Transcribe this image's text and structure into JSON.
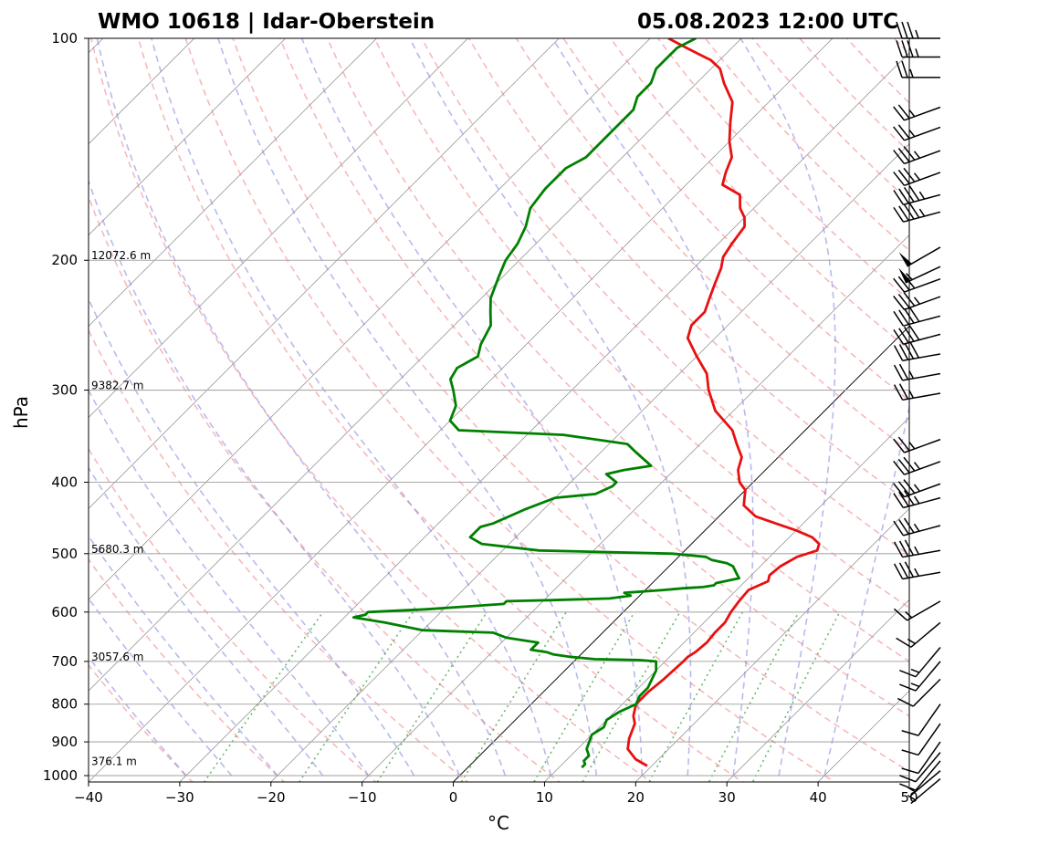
{
  "header": {
    "station": "WMO 10618 | Idar-Oberstein",
    "datetime": "05.08.2023 12:00 UTC"
  },
  "chart_data": {
    "type": "line",
    "subtype": "skew-t log-p sounding",
    "xlabel": "°C",
    "ylabel": "hPa",
    "xlim": [
      -40,
      50
    ],
    "ylim": [
      1020,
      100
    ],
    "y_scale": "log",
    "x_ticks": [
      -40,
      -30,
      -20,
      -10,
      0,
      10,
      20,
      30,
      40,
      50
    ],
    "x_tick_labels": [
      "−40",
      "−30",
      "−20",
      "−10",
      "0",
      "10",
      "20",
      "30",
      "40",
      "50"
    ],
    "y_ticks": [
      100,
      200,
      300,
      400,
      500,
      600,
      700,
      800,
      900,
      1000
    ],
    "y_tick_labels": [
      "100",
      "200",
      "300",
      "400",
      "500",
      "600",
      "700",
      "800",
      "900",
      "1000"
    ],
    "grid": true,
    "reference_lines": {
      "isotherms": "gray, skewed 45°",
      "zero_isotherm": "black",
      "dry_adiabats": "dashed red",
      "moist_adiabats": "dashed blue",
      "mixing_ratio": "dotted green"
    },
    "height_labels": [
      {
        "p": 200,
        "label": "12072.6 m"
      },
      {
        "p": 300,
        "label": "9382.7 m"
      },
      {
        "p": 500,
        "label": "5680.3 m"
      },
      {
        "p": 700,
        "label": "3057.6 m"
      },
      {
        "p": 970,
        "label": "376.1 m"
      }
    ],
    "series": [
      {
        "color": "#e81010",
        "points": [
          [
            970,
            19.5
          ],
          [
            950,
            17.5
          ],
          [
            920,
            15.5
          ],
          [
            890,
            14.5
          ],
          [
            850,
            13.5
          ],
          [
            830,
            12.5
          ],
          [
            800,
            11.5
          ],
          [
            770,
            11.5
          ],
          [
            740,
            11.8
          ],
          [
            700,
            12
          ],
          [
            690,
            12
          ],
          [
            680,
            12.3
          ],
          [
            660,
            12.5
          ],
          [
            640,
            12.3
          ],
          [
            620,
            12.3
          ],
          [
            600,
            11.8
          ],
          [
            580,
            11.5
          ],
          [
            560,
            11.3
          ],
          [
            545,
            12.5
          ],
          [
            535,
            12.0
          ],
          [
            520,
            12.2
          ],
          [
            505,
            13
          ],
          [
            495,
            14.5
          ],
          [
            485,
            14
          ],
          [
            475,
            12.5
          ],
          [
            465,
            10
          ],
          [
            455,
            7
          ],
          [
            445,
            4
          ],
          [
            430,
            1.5
          ],
          [
            410,
            0
          ],
          [
            400,
            -1.5
          ],
          [
            385,
            -3
          ],
          [
            370,
            -4
          ],
          [
            355,
            -6
          ],
          [
            340,
            -8
          ],
          [
            320,
            -12
          ],
          [
            300,
            -15
          ],
          [
            285,
            -17
          ],
          [
            270,
            -20
          ],
          [
            255,
            -23
          ],
          [
            245,
            -24
          ],
          [
            235,
            -24
          ],
          [
            225,
            -25
          ],
          [
            215,
            -26
          ],
          [
            205,
            -27
          ],
          [
            198,
            -28
          ],
          [
            190,
            -28.5
          ],
          [
            180,
            -29
          ],
          [
            175,
            -30
          ],
          [
            170,
            -31.5
          ],
          [
            163,
            -33
          ],
          [
            158,
            -36
          ],
          [
            152,
            -37
          ],
          [
            145,
            -38
          ],
          [
            138,
            -40
          ],
          [
            130,
            -42
          ],
          [
            122,
            -44
          ],
          [
            115,
            -47
          ],
          [
            110,
            -49
          ],
          [
            107,
            -51
          ],
          [
            105,
            -53
          ],
          [
            103,
            -55
          ],
          [
            100,
            -58
          ]
        ]
      },
      {
        "color": "#008000",
        "points": [
          [
            975,
            12.5
          ],
          [
            965,
            12.5
          ],
          [
            955,
            12
          ],
          [
            940,
            12
          ],
          [
            920,
            11
          ],
          [
            900,
            10.5
          ],
          [
            880,
            10
          ],
          [
            860,
            10.5
          ],
          [
            840,
            10
          ],
          [
            820,
            10.5
          ],
          [
            800,
            11.5
          ],
          [
            780,
            11
          ],
          [
            760,
            11
          ],
          [
            740,
            10.5
          ],
          [
            720,
            10
          ],
          [
            700,
            9
          ],
          [
            697,
            7
          ],
          [
            695,
            2
          ],
          [
            690,
            -1
          ],
          [
            685,
            -3
          ],
          [
            680,
            -4
          ],
          [
            675,
            -6
          ],
          [
            660,
            -6
          ],
          [
            655,
            -8
          ],
          [
            650,
            -10
          ],
          [
            640,
            -12
          ],
          [
            635,
            -20
          ],
          [
            620,
            -25
          ],
          [
            610,
            -29
          ],
          [
            605,
            -28
          ],
          [
            600,
            -28
          ],
          [
            595,
            -22
          ],
          [
            590,
            -18
          ],
          [
            585,
            -14
          ],
          [
            580,
            -14
          ],
          [
            578,
            -9
          ],
          [
            575,
            -3
          ],
          [
            570,
            -1
          ],
          [
            565,
            -2
          ],
          [
            560,
            2
          ],
          [
            557,
            4
          ],
          [
            555,
            6
          ],
          [
            552,
            7
          ],
          [
            548,
            7
          ],
          [
            540,
            9
          ],
          [
            530,
            8
          ],
          [
            520,
            7
          ],
          [
            515,
            6
          ],
          [
            510,
            4
          ],
          [
            505,
            3
          ],
          [
            500,
            -1
          ],
          [
            495,
            -16
          ],
          [
            485,
            -23
          ],
          [
            475,
            -25
          ],
          [
            460,
            -25
          ],
          [
            455,
            -24
          ],
          [
            445,
            -23
          ],
          [
            435,
            -22
          ],
          [
            420,
            -20
          ],
          [
            415,
            -16
          ],
          [
            405,
            -15
          ],
          [
            400,
            -15
          ],
          [
            395,
            -16
          ],
          [
            390,
            -17
          ],
          [
            385,
            -15.5
          ],
          [
            380,
            -13
          ],
          [
            375,
            -14
          ],
          [
            370,
            -15
          ],
          [
            365,
            -16
          ],
          [
            360,
            -17
          ],
          [
            355,
            -18
          ],
          [
            345,
            -26
          ],
          [
            340,
            -38
          ],
          [
            330,
            -40
          ],
          [
            315,
            -41
          ],
          [
            300,
            -43
          ],
          [
            290,
            -44.5
          ],
          [
            280,
            -45
          ],
          [
            270,
            -44
          ],
          [
            260,
            -45
          ],
          [
            245,
            -46
          ],
          [
            235,
            -47.5
          ],
          [
            225,
            -49
          ],
          [
            210,
            -50.5
          ],
          [
            200,
            -51.5
          ],
          [
            190,
            -52
          ],
          [
            180,
            -53
          ],
          [
            170,
            -54.5
          ],
          [
            160,
            -55
          ],
          [
            150,
            -55
          ],
          [
            145,
            -54
          ],
          [
            135,
            -54
          ],
          [
            125,
            -54
          ],
          [
            120,
            -55
          ],
          [
            115,
            -55
          ],
          [
            110,
            -56
          ],
          [
            106,
            -56
          ],
          [
            103,
            -56
          ],
          [
            100,
            -55
          ]
        ]
      }
    ],
    "wind_barbs": [
      {
        "p": 100,
        "dir": 270,
        "kt": 35
      },
      {
        "p": 106,
        "dir": 270,
        "kt": 35
      },
      {
        "p": 113,
        "dir": 270,
        "kt": 25
      },
      {
        "p": 124,
        "dir": 250,
        "kt": 25
      },
      {
        "p": 132,
        "dir": 250,
        "kt": 25
      },
      {
        "p": 142,
        "dir": 250,
        "kt": 35
      },
      {
        "p": 152,
        "dir": 250,
        "kt": 35
      },
      {
        "p": 163,
        "dir": 255,
        "kt": 45
      },
      {
        "p": 172,
        "dir": 255,
        "kt": 45
      },
      {
        "p": 192,
        "dir": 240,
        "kt": 50
      },
      {
        "p": 204,
        "dir": 245,
        "kt": 55
      },
      {
        "p": 212,
        "dir": 250,
        "kt": 25
      },
      {
        "p": 224,
        "dir": 250,
        "kt": 35
      },
      {
        "p": 238,
        "dir": 255,
        "kt": 40
      },
      {
        "p": 252,
        "dir": 255,
        "kt": 40
      },
      {
        "p": 268,
        "dir": 260,
        "kt": 40
      },
      {
        "p": 285,
        "dir": 260,
        "kt": 25
      },
      {
        "p": 303,
        "dir": 260,
        "kt": 25
      },
      {
        "p": 350,
        "dir": 250,
        "kt": 25
      },
      {
        "p": 375,
        "dir": 250,
        "kt": 35
      },
      {
        "p": 402,
        "dir": 250,
        "kt": 35
      },
      {
        "p": 420,
        "dir": 255,
        "kt": 35
      },
      {
        "p": 458,
        "dir": 255,
        "kt": 35
      },
      {
        "p": 495,
        "dir": 260,
        "kt": 35
      },
      {
        "p": 530,
        "dir": 260,
        "kt": 35
      },
      {
        "p": 580,
        "dir": 240,
        "kt": 15
      },
      {
        "p": 620,
        "dir": 230,
        "kt": 15
      },
      {
        "p": 670,
        "dir": 220,
        "kt": 15
      },
      {
        "p": 700,
        "dir": 220,
        "kt": 15
      },
      {
        "p": 740,
        "dir": 225,
        "kt": 10
      },
      {
        "p": 800,
        "dir": 215,
        "kt": 10
      },
      {
        "p": 850,
        "dir": 215,
        "kt": 10
      },
      {
        "p": 900,
        "dir": 215,
        "kt": 10
      },
      {
        "p": 930,
        "dir": 220,
        "kt": 10
      },
      {
        "p": 955,
        "dir": 220,
        "kt": 10
      },
      {
        "p": 985,
        "dir": 230,
        "kt": 5
      },
      {
        "p": 1010,
        "dir": 230,
        "kt": 5
      }
    ]
  }
}
